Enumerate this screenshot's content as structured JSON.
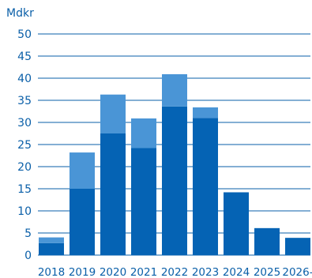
{
  "chart_data": {
    "type": "bar",
    "stacked": true,
    "unit_label": "Mdkr",
    "title": "",
    "xlabel": "",
    "ylabel": "",
    "categories": [
      "2018",
      "2019",
      "2020",
      "2021",
      "2022",
      "2023",
      "2024",
      "2025",
      "2026-"
    ],
    "series": [
      {
        "values": [
          2.7,
          15.0,
          27.5,
          24.2,
          33.6,
          31.0,
          14.2,
          6.1,
          3.9
        ]
      },
      {
        "values": [
          1.3,
          8.2,
          8.8,
          6.7,
          7.3,
          2.4,
          0,
          0,
          0
        ]
      }
    ],
    "yticks": [
      0,
      5,
      10,
      15,
      20,
      25,
      30,
      35,
      40,
      45,
      50
    ],
    "ylim": [
      0,
      50
    ],
    "grid": true,
    "legend": "none",
    "colors": {
      "series": [
        "#0563b4",
        "#4a95d6"
      ],
      "text": "#0a5fa8",
      "grid": "#0a5fa8"
    }
  }
}
